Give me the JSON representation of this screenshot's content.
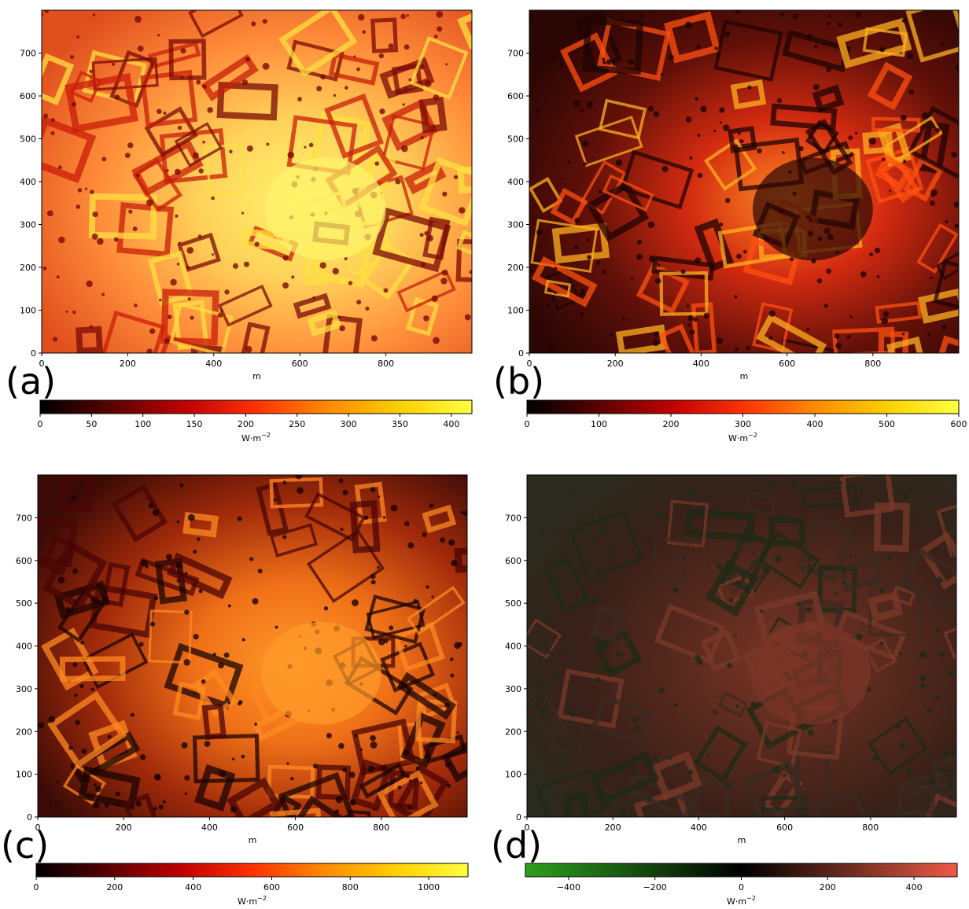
{
  "panels": [
    {
      "label": "(a)",
      "xlabel": "m",
      "colorbar_label": "W·m",
      "colorbar_exponent": "−2",
      "colorbar_ticks": [
        "0",
        "50",
        "100",
        "150",
        "200",
        "250",
        "300",
        "350",
        "400"
      ],
      "colorbar_colors": [
        "#000000",
        "#5a0000",
        "#c00000",
        "#ff3000",
        "#ff8a00",
        "#ffd000",
        "#ffff40"
      ]
    },
    {
      "label": "(b)",
      "xlabel": "m",
      "colorbar_label": "W·m",
      "colorbar_exponent": "−2",
      "colorbar_ticks": [
        "0",
        "100",
        "200",
        "300",
        "400",
        "500",
        "600"
      ],
      "colorbar_colors": [
        "#000000",
        "#5a0000",
        "#c00000",
        "#ff3000",
        "#ff8a00",
        "#ffd000",
        "#ffff40"
      ]
    },
    {
      "label": "(c)",
      "xlabel": "m",
      "colorbar_label": "W·m",
      "colorbar_exponent": "−2",
      "colorbar_ticks": [
        "0",
        "200",
        "400",
        "600",
        "800",
        "1000"
      ],
      "colorbar_colors": [
        "#000000",
        "#5a0000",
        "#c00000",
        "#ff3000",
        "#ff8a00",
        "#ffd000",
        "#ffff40"
      ]
    },
    {
      "label": "(d)",
      "xlabel": "m",
      "colorbar_label": "W·m",
      "colorbar_exponent": "−2",
      "colorbar_ticks": [
        "−400",
        "−200",
        "0",
        "200",
        "400"
      ],
      "colorbar_colors": [
        "#2ea01e",
        "#175010",
        "#000000",
        "#6e2c1e",
        "#f05a46"
      ]
    }
  ],
  "chart_data": [
    {
      "type": "heatmap",
      "panel": "(a)",
      "xlabel": "m",
      "ylabel": "",
      "xlim": [
        0,
        1000
      ],
      "ylim": [
        0,
        800
      ],
      "xticks": [
        0,
        200,
        400,
        600,
        800
      ],
      "yticks": [
        0,
        100,
        200,
        300,
        400,
        500,
        600,
        700
      ],
      "colorbar": {
        "label": "W·m⁻²",
        "range": [
          0,
          420
        ],
        "ticks": [
          0,
          50,
          100,
          150,
          200,
          250,
          300,
          350,
          400
        ],
        "colormap": "hot"
      }
    },
    {
      "type": "heatmap",
      "panel": "(b)",
      "xlabel": "m",
      "ylabel": "",
      "xlim": [
        0,
        1000
      ],
      "ylim": [
        0,
        800
      ],
      "xticks": [
        0,
        200,
        400,
        600,
        800
      ],
      "yticks": [
        0,
        100,
        200,
        300,
        400,
        500,
        600,
        700
      ],
      "colorbar": {
        "label": "W·m⁻²",
        "range": [
          0,
          600
        ],
        "ticks": [
          0,
          100,
          200,
          300,
          400,
          500,
          600
        ],
        "colormap": "hot"
      }
    },
    {
      "type": "heatmap",
      "panel": "(c)",
      "xlabel": "m",
      "ylabel": "",
      "xlim": [
        0,
        1000
      ],
      "ylim": [
        0,
        800
      ],
      "xticks": [
        0,
        200,
        400,
        600,
        800
      ],
      "yticks": [
        0,
        100,
        200,
        300,
        400,
        500,
        600,
        700
      ],
      "colorbar": {
        "label": "W·m⁻²",
        "range": [
          0,
          1100
        ],
        "ticks": [
          0,
          200,
          400,
          600,
          800,
          1000
        ],
        "colormap": "hot"
      }
    },
    {
      "type": "heatmap",
      "panel": "(d)",
      "xlabel": "m",
      "ylabel": "",
      "xlim": [
        0,
        1000
      ],
      "ylim": [
        0,
        800
      ],
      "xticks": [
        0,
        200,
        400,
        600,
        800
      ],
      "yticks": [
        0,
        100,
        200,
        300,
        400,
        500,
        600,
        700
      ],
      "colorbar": {
        "label": "W·m⁻²",
        "range": [
          -500,
          500
        ],
        "ticks": [
          -400,
          -200,
          0,
          200,
          400
        ],
        "colormap": "green-black-red diverging"
      }
    }
  ]
}
